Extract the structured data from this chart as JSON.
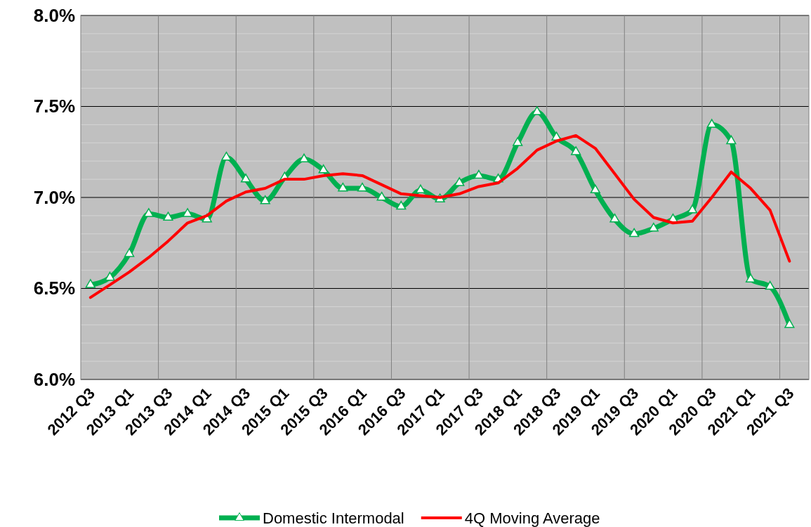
{
  "chart_data": {
    "type": "line",
    "categories": [
      "2012 Q3",
      null,
      "2013 Q1",
      null,
      "2013 Q3",
      null,
      "2014 Q1",
      null,
      "2014 Q3",
      null,
      "2015 Q1",
      null,
      "2015 Q3",
      null,
      "2016 Q1",
      null,
      "2016 Q3",
      null,
      "2017 Q1",
      null,
      "2017 Q3",
      null,
      "2018 Q1",
      null,
      "2018 Q3",
      null,
      "2019 Q1",
      null,
      "2019 Q3",
      null,
      "2020 Q1",
      null,
      "2020 Q3",
      null,
      "2021 Q1",
      null,
      "2021 Q3"
    ],
    "ylim": [
      6.0,
      8.0
    ],
    "yticks": [
      {
        "value": 6.0,
        "label": "6.0%"
      },
      {
        "value": 6.1,
        "label": null
      },
      {
        "value": 6.2,
        "label": null
      },
      {
        "value": 6.3,
        "label": null
      },
      {
        "value": 6.4,
        "label": null
      },
      {
        "value": 6.5,
        "label": "6.5%"
      },
      {
        "value": 6.6,
        "label": null
      },
      {
        "value": 6.7,
        "label": null
      },
      {
        "value": 6.8,
        "label": null
      },
      {
        "value": 6.9,
        "label": null
      },
      {
        "value": 7.0,
        "label": "7.0%"
      },
      {
        "value": 7.1,
        "label": null
      },
      {
        "value": 7.2,
        "label": null
      },
      {
        "value": 7.3,
        "label": null
      },
      {
        "value": 7.4,
        "label": null
      },
      {
        "value": 7.5,
        "label": "7.5%"
      },
      {
        "value": 7.6,
        "label": null
      },
      {
        "value": 7.7,
        "label": null
      },
      {
        "value": 7.8,
        "label": null
      },
      {
        "value": 7.9,
        "label": null
      },
      {
        "value": 8.0,
        "label": "8.0%"
      }
    ],
    "grid": true,
    "legend": "bottom",
    "series": [
      {
        "name": "Domestic Intermodal",
        "color": "#00b050",
        "marker": "triangle",
        "values": [
          6.52,
          6.56,
          6.69,
          6.91,
          6.89,
          6.91,
          6.88,
          7.22,
          7.1,
          6.98,
          7.11,
          7.21,
          7.15,
          7.05,
          7.05,
          7.0,
          6.95,
          7.04,
          6.99,
          7.08,
          7.12,
          7.1,
          7.3,
          7.47,
          7.33,
          7.25,
          7.04,
          6.88,
          6.8,
          6.83,
          6.88,
          6.93,
          7.4,
          7.31,
          6.55,
          6.51,
          6.3
        ]
      },
      {
        "name": "4Q Moving Average",
        "color": "#ff0000",
        "marker": "none",
        "values": [
          6.45,
          6.52,
          6.59,
          6.67,
          6.76,
          6.86,
          6.9,
          6.98,
          7.03,
          7.05,
          7.1,
          7.1,
          7.12,
          7.13,
          7.12,
          7.07,
          7.02,
          7.01,
          7.0,
          7.02,
          7.06,
          7.08,
          7.16,
          7.26,
          7.31,
          7.34,
          7.27,
          7.13,
          6.99,
          6.89,
          6.86,
          6.87,
          7.0,
          7.14,
          7.05,
          6.93,
          6.65
        ]
      }
    ]
  }
}
